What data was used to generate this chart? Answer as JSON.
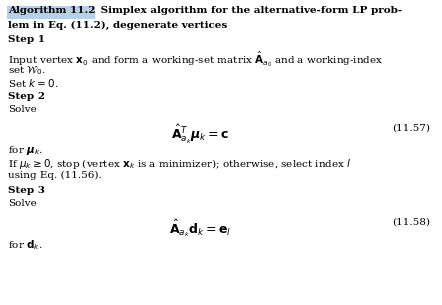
{
  "figsize": [
    4.42,
    3.05
  ],
  "dpi": 100,
  "background_color": "#ffffff",
  "highlight_color": "#b8cfe8",
  "title_bold": "Algorithm 11.2",
  "title_normal": " Simplex algorithm for the alternative-form LP prob-",
  "title_line2": "lem in Eq. (11.2), degenerate vertices",
  "step1_bold": "Step 1",
  "step1_text": "Input vertex $\\mathbf{x}_0$ and form a working-set matrix $\\hat{\\mathbf{A}}_{a_0}$ and a working-index",
  "step1_text2": "set $\\mathcal{W}_0$.",
  "step1_text3": "Set $k = 0$.",
  "step2_bold": "Step 2",
  "step2_text": "Solve",
  "eq1": "$\\hat{\\mathbf{A}}^{T}_{a_k}\\boldsymbol{\\mu}_k = \\mathbf{c}$",
  "eq1_num": "(11.57)",
  "step2_for": "for $\\boldsymbol{\\mu}_k$.",
  "step2_if": "If $\\mu_k \\geq 0$, stop (vertex $\\mathbf{x}_k$ is a minimizer); otherwise, select index $l$",
  "step2_using": "using Eq. (11.56).",
  "step3_bold": "Step 3",
  "step3_text": "Solve",
  "eq2": "$\\hat{\\mathbf{A}}_{a_k}\\mathbf{d}_k = \\mathbf{e}_l$",
  "eq2_num": "(11.58)",
  "step3_for": "for $\\mathbf{d}_k$.",
  "font_size": 7.5,
  "eq_font_size": 9.0
}
